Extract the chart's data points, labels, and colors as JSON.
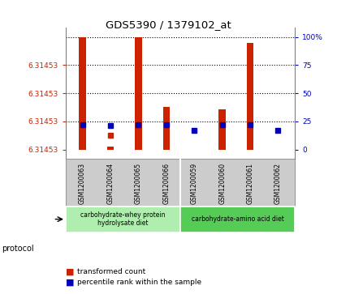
{
  "title": "GDS5390 / 1379102_at",
  "samples": [
    "GSM1200063",
    "GSM1200064",
    "GSM1200065",
    "GSM1200066",
    "GSM1200059",
    "GSM1200060",
    "GSM1200061",
    "GSM1200062"
  ],
  "red_pct_tops": [
    100,
    3,
    100,
    38,
    0,
    36,
    95,
    0
  ],
  "red_pct_bottoms": [
    18,
    15,
    18,
    18,
    0,
    18,
    18,
    0
  ],
  "blue_pct": [
    22,
    21,
    22,
    22,
    17,
    22,
    22,
    17
  ],
  "has_red_bar": [
    true,
    true,
    true,
    true,
    false,
    true,
    true,
    false
  ],
  "has_red_below": [
    true,
    true,
    true,
    true,
    false,
    true,
    true,
    false
  ],
  "protocol_groups": [
    {
      "label": "carbohydrate-whey protein\nhydrolysate diet",
      "start": 0,
      "end": 4,
      "color": "#b0eeb0"
    },
    {
      "label": "carbohydrate-amino acid diet",
      "start": 4,
      "end": 8,
      "color": "#55cc55"
    }
  ],
  "red_color": "#cc2200",
  "blue_color": "#0000bb",
  "bg_plot": "#ffffff",
  "bg_labels": "#cccccc",
  "left_tick_color": "#cc2200",
  "right_tick_color": "#0000bb",
  "bar_width": 0.25,
  "y_label_all": "6.31453",
  "right_ticks": [
    0,
    25,
    50,
    75,
    100
  ],
  "dotted_pcts": [
    25,
    50,
    75,
    100
  ]
}
